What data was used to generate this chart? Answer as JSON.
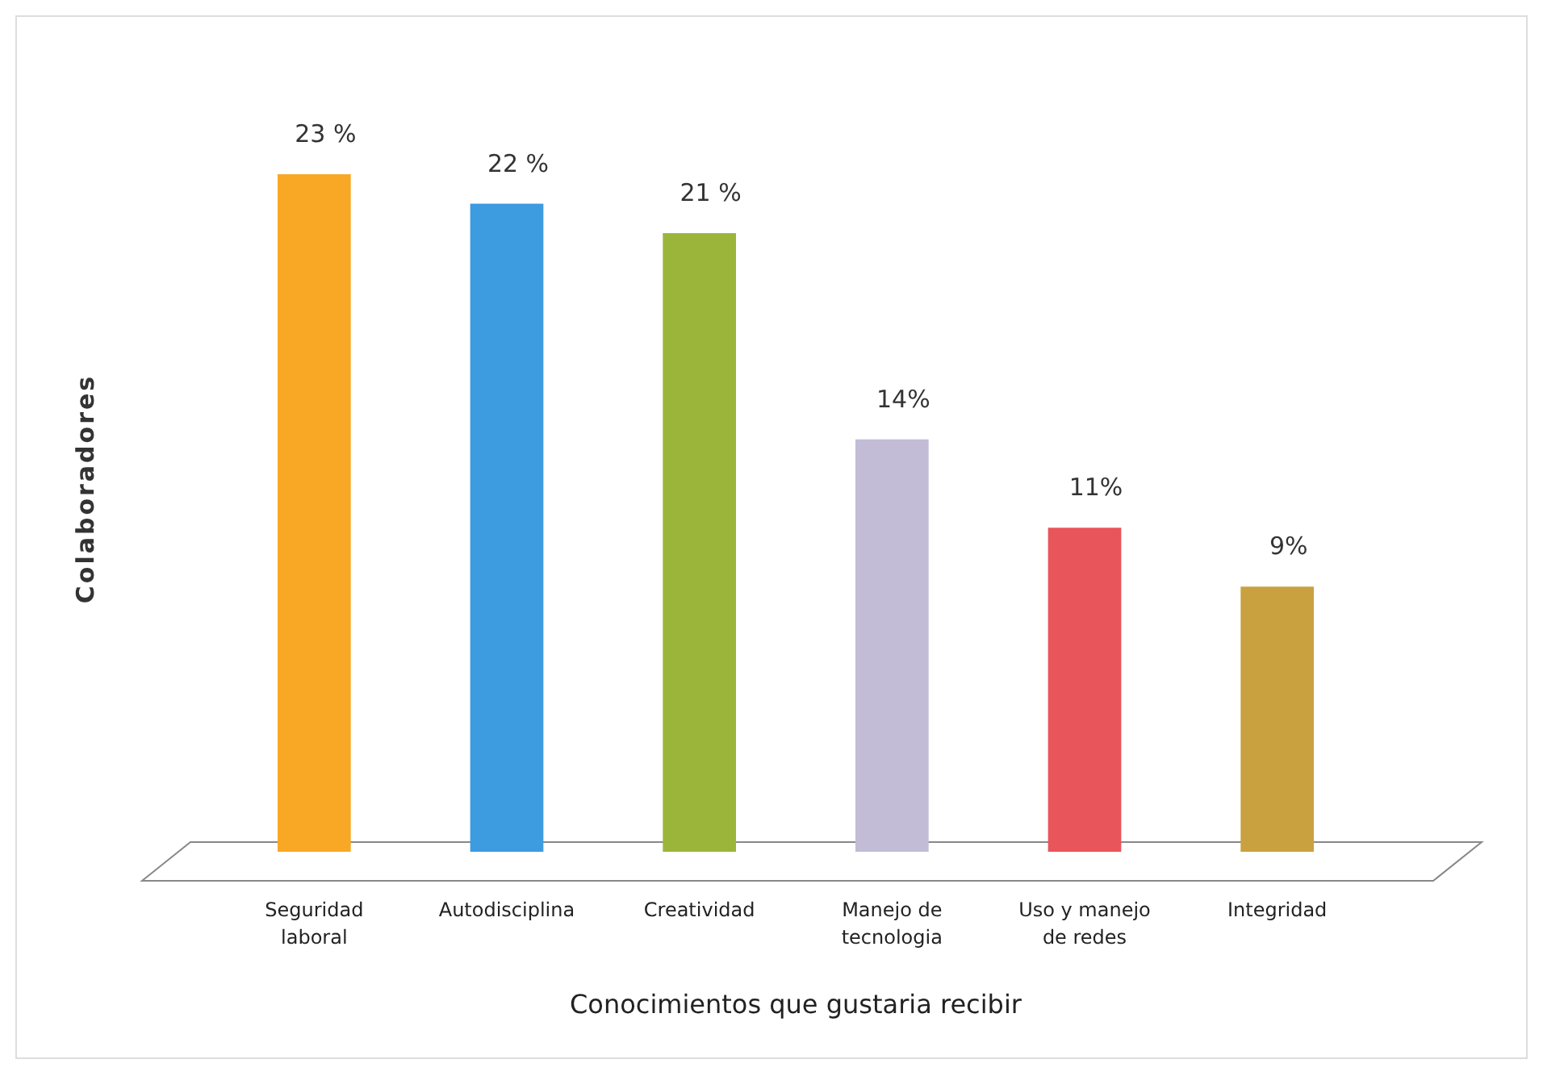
{
  "chart_data": {
    "type": "bar",
    "ylabel": "Colaboradores",
    "xlabel": "Conocimientos que gustaria recibir",
    "categories": [
      "Seguridad laboral",
      "Autodisciplina",
      "Creatividad",
      "Manejo de tecnologia",
      "Uso y manejo de redes",
      "Integridad"
    ],
    "values": [
      23,
      22,
      21,
      14,
      11,
      9
    ],
    "colors": [
      "#f9a825",
      "#3d9be0",
      "#9bb53a",
      "#c2bcd6",
      "#e8555a",
      "#c9a13f"
    ],
    "value_labels": [
      "23 %",
      "22 %",
      "21 %",
      "14%",
      "11%",
      "9%"
    ]
  }
}
